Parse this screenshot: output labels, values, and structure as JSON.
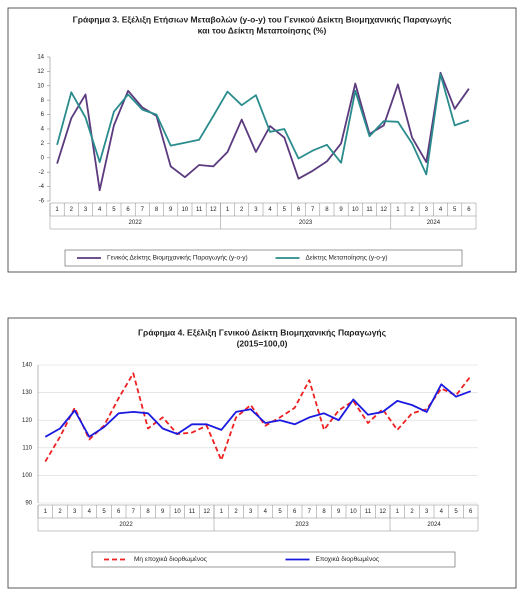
{
  "chart_data": [
    {
      "type": "line",
      "title": [
        "Γράφημα 3. Εξέλιξη Ετήσιων Μεταβολών (y-o-y) του Γενικού Δείκτη Βιομηχανικής Παραγωγής",
        "και του Δείκτη Μεταποίησης (%)"
      ],
      "categories": [
        "1",
        "2",
        "3",
        "4",
        "5",
        "6",
        "7",
        "8",
        "9",
        "10",
        "11",
        "12",
        "1",
        "2",
        "3",
        "4",
        "5",
        "6",
        "7",
        "8",
        "9",
        "10",
        "11",
        "12",
        "1",
        "2",
        "3",
        "4",
        "5",
        "6"
      ],
      "year_labels": [
        "2022",
        "2023",
        "2024"
      ],
      "series": [
        {
          "name": "Γενικός Δείκτης Βιομηχανικής Παραγωγής (y-o-y)",
          "color": "#5b3a7e",
          "dashed": false,
          "values": [
            -0.8,
            5.5,
            8.8,
            -4.5,
            4.5,
            9.3,
            7.0,
            5.8,
            -1.2,
            -2.7,
            -1.0,
            -1.2,
            0.8,
            5.3,
            0.8,
            4.4,
            2.8,
            -2.9,
            -1.8,
            -0.5,
            2.0,
            10.3,
            3.3,
            4.5,
            10.2,
            2.8,
            -0.6,
            11.8,
            6.8,
            9.6
          ]
        },
        {
          "name": "Δείκτης Μεταποίησης (y-o-y)",
          "color": "#2a8c8c",
          "dashed": false,
          "values": [
            1.8,
            9.1,
            5.6,
            -0.6,
            6.4,
            8.8,
            6.7,
            6.0,
            1.7,
            2.1,
            2.5,
            5.8,
            9.2,
            7.3,
            8.7,
            3.6,
            4.0,
            -0.1,
            1.0,
            1.8,
            -0.7,
            9.3,
            3.0,
            5.1,
            5.0,
            2.0,
            -2.3,
            11.6,
            4.5,
            5.2
          ]
        }
      ],
      "ylim": [
        -6,
        14
      ],
      "yticks": [
        -6,
        -4,
        -2,
        0,
        2,
        4,
        6,
        8,
        10,
        12,
        14
      ],
      "grid": false
    },
    {
      "type": "line",
      "title": [
        "Γράφημα 4. Εξέλιξη Γενικού Δείκτη Βιομηχανικής Παραγωγής",
        "(2015=100,0)"
      ],
      "categories": [
        "1",
        "2",
        "3",
        "4",
        "5",
        "6",
        "7",
        "8",
        "9",
        "10",
        "11",
        "12",
        "1",
        "2",
        "3",
        "4",
        "5",
        "6",
        "7",
        "8",
        "9",
        "10",
        "11",
        "12",
        "1",
        "2",
        "3",
        "4",
        "5",
        "6"
      ],
      "year_labels": [
        "2022",
        "2023",
        "2024"
      ],
      "series": [
        {
          "name": "Μη εποχικά διορθωμένος",
          "color": "#ee2020",
          "dashed": true,
          "values": [
            105,
            114,
            124.5,
            113,
            118,
            128,
            137,
            117,
            121,
            115,
            115.5,
            118,
            105.5,
            121,
            125.5,
            118,
            121,
            124.5,
            134.5,
            116.5,
            123.5,
            127,
            119,
            124,
            116.5,
            122.5,
            124,
            131.5,
            129,
            136
          ]
        },
        {
          "name": "Εποχικά διορθωμένος",
          "color": "#1a1ae0",
          "dashed": false,
          "values": [
            114,
            117,
            123.5,
            114,
            117.5,
            122.5,
            123,
            122.5,
            117,
            115,
            118.5,
            118.5,
            116.5,
            123,
            124,
            119,
            120,
            118.5,
            121,
            122.5,
            120,
            127.5,
            122,
            123,
            127,
            125.5,
            123,
            133,
            128.5,
            130.5
          ]
        }
      ],
      "ylim": [
        90,
        140
      ],
      "yticks": [
        90,
        100,
        110,
        120,
        130,
        140
      ],
      "grid": true
    }
  ]
}
